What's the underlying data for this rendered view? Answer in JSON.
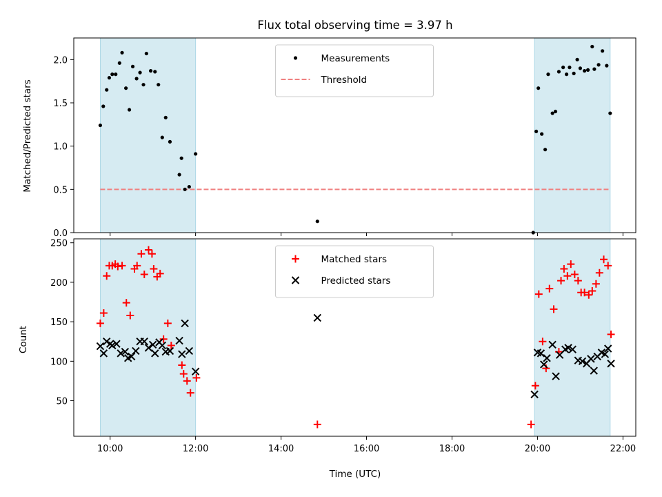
{
  "chart_data": [
    {
      "type": "scatter",
      "title": "Flux total observing time = 3.97 h",
      "xlabel": "",
      "ylabel": "Matched/Predicted stars",
      "xlim": [
        9.15,
        22.3
      ],
      "ylim": [
        0,
        2.25
      ],
      "xticks": [
        10,
        12,
        14,
        16,
        18,
        20,
        22
      ],
      "xticklabels": [
        "",
        "",
        "",
        "",
        "",
        "",
        ""
      ],
      "yticks": [
        0.0,
        0.5,
        1.0,
        1.5,
        2.0
      ],
      "yticklabels": [
        "0.0",
        "0.5",
        "1.0",
        "1.5",
        "2.0"
      ],
      "shaded_spans": [
        [
          9.77,
          12.0
        ],
        [
          19.93,
          21.7
        ]
      ],
      "legend_position": "upper center",
      "threshold": {
        "name": "Threshold",
        "y": 0.5,
        "x_range": [
          9.77,
          21.7
        ],
        "color": "#f08080",
        "style": "dashed"
      },
      "series": [
        {
          "name": "Measurements",
          "marker": "dot",
          "color": "#000000",
          "points": [
            [
              9.77,
              1.24
            ],
            [
              9.84,
              1.46
            ],
            [
              9.92,
              1.65
            ],
            [
              9.98,
              1.79
            ],
            [
              10.05,
              1.83
            ],
            [
              10.13,
              1.83
            ],
            [
              10.22,
              1.96
            ],
            [
              10.28,
              2.08
            ],
            [
              10.37,
              1.67
            ],
            [
              10.45,
              1.42
            ],
            [
              10.53,
              1.92
            ],
            [
              10.62,
              1.78
            ],
            [
              10.7,
              1.85
            ],
            [
              10.78,
              1.71
            ],
            [
              10.85,
              2.07
            ],
            [
              10.95,
              1.87
            ],
            [
              11.05,
              1.86
            ],
            [
              11.13,
              1.71
            ],
            [
              11.22,
              1.1
            ],
            [
              11.3,
              1.33
            ],
            [
              11.4,
              1.05
            ],
            [
              11.62,
              0.67
            ],
            [
              11.67,
              0.86
            ],
            [
              11.75,
              0.5
            ],
            [
              11.85,
              0.53
            ],
            [
              12.0,
              0.91
            ],
            [
              14.85,
              0.13
            ],
            [
              19.9,
              0.0
            ],
            [
              19.97,
              1.17
            ],
            [
              20.02,
              1.67
            ],
            [
              20.1,
              1.14
            ],
            [
              20.18,
              0.96
            ],
            [
              20.25,
              1.83
            ],
            [
              20.35,
              1.38
            ],
            [
              20.42,
              1.4
            ],
            [
              20.5,
              1.86
            ],
            [
              20.6,
              1.91
            ],
            [
              20.68,
              1.83
            ],
            [
              20.75,
              1.91
            ],
            [
              20.85,
              1.84
            ],
            [
              20.93,
              2.0
            ],
            [
              21.0,
              1.9
            ],
            [
              21.1,
              1.87
            ],
            [
              21.18,
              1.88
            ],
            [
              21.28,
              2.15
            ],
            [
              21.33,
              1.89
            ],
            [
              21.43,
              1.94
            ],
            [
              21.52,
              2.1
            ],
            [
              21.62,
              1.93
            ],
            [
              21.7,
              1.38
            ]
          ]
        }
      ]
    },
    {
      "type": "scatter",
      "title": "",
      "xlabel": "Time (UTC)",
      "ylabel": "Count",
      "xlim": [
        9.15,
        22.3
      ],
      "ylim": [
        5,
        255
      ],
      "xticks": [
        10,
        12,
        14,
        16,
        18,
        20,
        22
      ],
      "xticklabels": [
        "10:00",
        "12:00",
        "14:00",
        "16:00",
        "18:00",
        "20:00",
        "22:00"
      ],
      "yticks": [
        50,
        100,
        150,
        200,
        250
      ],
      "yticklabels": [
        "50",
        "100",
        "150",
        "200",
        "250"
      ],
      "shaded_spans": [
        [
          9.77,
          12.0
        ],
        [
          19.93,
          21.7
        ]
      ],
      "legend_position": "upper center",
      "series": [
        {
          "name": "Matched stars",
          "marker": "plus",
          "color": "#ff0000",
          "points": [
            [
              9.77,
              148
            ],
            [
              9.85,
              161
            ],
            [
              9.92,
              208
            ],
            [
              9.98,
              221
            ],
            [
              10.05,
              221
            ],
            [
              10.12,
              223
            ],
            [
              10.18,
              220
            ],
            [
              10.28,
              221
            ],
            [
              10.38,
              174
            ],
            [
              10.47,
              158
            ],
            [
              10.57,
              217
            ],
            [
              10.63,
              221
            ],
            [
              10.73,
              236
            ],
            [
              10.8,
              210
            ],
            [
              10.9,
              241
            ],
            [
              10.98,
              236
            ],
            [
              11.02,
              217
            ],
            [
              11.1,
              207
            ],
            [
              11.17,
              211
            ],
            [
              11.25,
              128
            ],
            [
              11.35,
              148
            ],
            [
              11.43,
              120
            ],
            [
              11.68,
              95
            ],
            [
              11.72,
              84
            ],
            [
              11.8,
              75
            ],
            [
              11.88,
              60
            ],
            [
              12.02,
              79
            ],
            [
              14.85,
              20
            ],
            [
              19.85,
              20
            ],
            [
              19.95,
              69
            ],
            [
              20.03,
              185
            ],
            [
              20.12,
              125
            ],
            [
              20.2,
              91
            ],
            [
              20.28,
              192
            ],
            [
              20.38,
              166
            ],
            [
              20.5,
              112
            ],
            [
              20.55,
              202
            ],
            [
              20.62,
              217
            ],
            [
              20.7,
              208
            ],
            [
              20.78,
              223
            ],
            [
              20.87,
              210
            ],
            [
              20.95,
              202
            ],
            [
              21.02,
              187
            ],
            [
              21.1,
              187
            ],
            [
              21.2,
              184
            ],
            [
              21.28,
              189
            ],
            [
              21.37,
              198
            ],
            [
              21.45,
              212
            ],
            [
              21.55,
              229
            ],
            [
              21.65,
              221
            ],
            [
              21.72,
              134
            ]
          ]
        },
        {
          "name": "Predicted stars",
          "marker": "x",
          "color": "#000000",
          "points": [
            [
              9.77,
              119
            ],
            [
              9.85,
              110
            ],
            [
              9.92,
              125
            ],
            [
              10.0,
              122
            ],
            [
              10.05,
              120
            ],
            [
              10.15,
              122
            ],
            [
              10.25,
              110
            ],
            [
              10.35,
              112
            ],
            [
              10.42,
              104
            ],
            [
              10.5,
              106
            ],
            [
              10.6,
              113
            ],
            [
              10.7,
              125
            ],
            [
              10.8,
              125
            ],
            [
              10.9,
              117
            ],
            [
              11.0,
              121
            ],
            [
              11.05,
              110
            ],
            [
              11.15,
              124
            ],
            [
              11.22,
              120
            ],
            [
              11.3,
              112
            ],
            [
              11.4,
              113
            ],
            [
              11.62,
              126
            ],
            [
              11.68,
              109
            ],
            [
              11.75,
              148
            ],
            [
              11.85,
              113
            ],
            [
              12.0,
              87
            ],
            [
              14.85,
              155
            ],
            [
              19.93,
              58
            ],
            [
              20.0,
              111
            ],
            [
              20.08,
              110
            ],
            [
              20.15,
              96
            ],
            [
              20.22,
              104
            ],
            [
              20.35,
              121
            ],
            [
              20.43,
              81
            ],
            [
              20.52,
              108
            ],
            [
              20.65,
              115
            ],
            [
              20.72,
              117
            ],
            [
              20.82,
              115
            ],
            [
              20.95,
              101
            ],
            [
              21.05,
              100
            ],
            [
              21.15,
              97
            ],
            [
              21.25,
              103
            ],
            [
              21.32,
              88
            ],
            [
              21.4,
              106
            ],
            [
              21.5,
              111
            ],
            [
              21.58,
              109
            ],
            [
              21.65,
              116
            ],
            [
              21.72,
              97
            ]
          ]
        }
      ]
    }
  ]
}
